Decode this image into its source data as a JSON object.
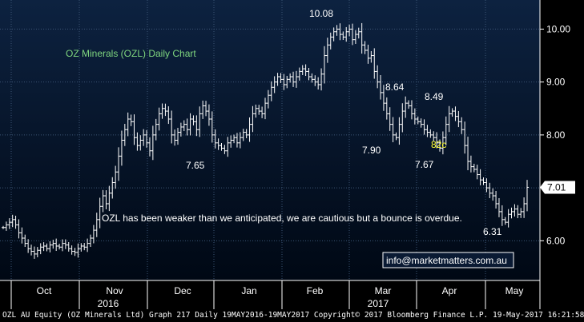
{
  "colors": {
    "background": "#000000",
    "plot_background_top": "#0d2240",
    "plot_background_bottom": "#000814",
    "grid": "#3c5575",
    "price_bars": "#ffffff",
    "title_text": "#7fd67f",
    "highlight_text": "#ffff33",
    "box_border": "#ffffff"
  },
  "footer": {
    "text": "OZL AU Equity (OZ Minerals Ltd) Graph 217  Daily 19MAY2016-19MAY2017 Copyright© 2017 Bloomberg Finance L.P. 19-May-2017 16:21:58"
  },
  "chart_data": {
    "type": "ohlc",
    "title": "OZ Minerals (OZL) Daily Chart",
    "xlabel": "",
    "ylabel": "",
    "ylim": [
      5.25,
      10.55
    ],
    "y_ticks": [
      6.0,
      7.0,
      8.0,
      9.0,
      10.0
    ],
    "y_tick_labels": [
      "6.00",
      "7.00",
      "8.00",
      "9.00",
      "10.00"
    ],
    "grid": true,
    "x_tick_labels": [
      "Oct",
      "Nov",
      "Dec",
      "Jan",
      "Feb",
      "Mar",
      "Apr",
      "May"
    ],
    "year_labels": [
      "2016",
      "2017"
    ],
    "last_price": 7.01,
    "last_price_label": "7.01",
    "annotations": [
      {
        "text": "10.08",
        "value": 10.08,
        "role": "high"
      },
      {
        "text": "8.64",
        "value": 8.64,
        "role": "high"
      },
      {
        "text": "8.49",
        "value": 8.49,
        "role": "high"
      },
      {
        "text": "7.65",
        "value": 7.65,
        "role": "low"
      },
      {
        "text": "7.90",
        "value": 7.9,
        "role": "low"
      },
      {
        "text": "7.67",
        "value": 7.67,
        "role": "low"
      },
      {
        "text": "6.31",
        "value": 6.31,
        "role": "low"
      },
      {
        "text": "82c",
        "role": "move"
      }
    ],
    "comment": "OZL has been weaker than we anticipated, we are cautious but a bounce is overdue.",
    "contact": "info@marketmatters.com.au",
    "series": [
      {
        "closes": [
          6.25,
          6.3,
          6.35,
          6.4,
          6.3,
          6.15,
          6.05,
          5.95,
          5.85,
          5.8,
          5.75,
          5.82,
          5.88,
          5.9,
          5.85,
          5.92,
          5.95,
          5.9,
          5.88,
          5.95,
          5.92,
          5.85,
          5.8,
          5.78,
          5.85,
          5.9,
          5.88,
          5.95,
          6.05,
          6.2,
          6.4,
          6.65,
          6.85,
          6.7,
          6.9,
          7.1,
          7.3,
          7.6,
          7.9,
          8.1,
          8.3,
          8.25,
          7.95,
          7.8,
          7.9,
          8.0,
          7.85,
          7.7,
          8.0,
          8.2,
          8.4,
          8.5,
          8.45,
          8.3,
          8.0,
          7.9,
          8.05,
          8.15,
          8.2,
          8.1,
          8.3,
          8.25,
          8.1,
          8.4,
          8.55,
          8.45,
          8.3,
          8.0,
          7.85,
          7.8,
          7.75,
          7.7,
          7.85,
          7.9,
          7.95,
          7.85,
          7.95,
          8.05,
          8.0,
          8.2,
          8.4,
          8.5,
          8.45,
          8.4,
          8.6,
          8.75,
          8.9,
          9.0,
          9.1,
          9.05,
          8.95,
          9.05,
          9.1,
          9.0,
          9.1,
          9.2,
          9.25,
          9.2,
          9.1,
          9.05,
          9.0,
          8.95,
          9.15,
          9.5,
          9.7,
          9.85,
          9.95,
          10.0,
          9.9,
          9.85,
          9.95,
          10.0,
          9.8,
          9.9,
          9.95,
          9.7,
          9.6,
          9.45,
          9.5,
          9.2,
          9.0,
          8.8,
          8.6,
          8.4,
          8.2,
          8.0,
          7.95,
          8.2,
          8.45,
          8.6,
          8.55,
          8.4,
          8.3,
          8.25,
          8.2,
          8.1,
          8.05,
          8.0,
          7.95,
          7.85,
          7.75,
          7.95,
          8.2,
          8.4,
          8.45,
          8.35,
          8.25,
          8.1,
          7.8,
          7.5,
          7.4,
          7.35,
          7.25,
          7.15,
          7.1,
          7.0,
          6.9,
          6.85,
          6.7,
          6.55,
          6.4,
          6.35,
          6.5,
          6.55,
          6.6,
          6.5,
          6.55,
          6.7,
          7.01
        ]
      }
    ]
  }
}
